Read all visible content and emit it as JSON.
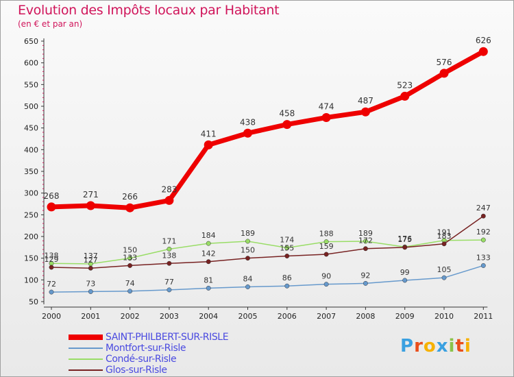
{
  "header": {
    "title": "Evolution des Impôts locaux par Habitant",
    "subtitle": "(en € et par an)"
  },
  "logo": {
    "text": "Proxiti",
    "letters": [
      "P",
      "r",
      "o",
      "x",
      "i",
      "t",
      "i"
    ],
    "colors": [
      "#3aa0e0",
      "#e94e1b",
      "#f6b100",
      "#3aa0e0",
      "#8bc34a",
      "#e94e1b",
      "#f6b100"
    ]
  },
  "chart_data": {
    "type": "line",
    "title": "Evolution des Impôts locaux par Habitant",
    "subtitle": "(en € et par an)",
    "x": [
      2000,
      2001,
      2002,
      2003,
      2004,
      2005,
      2006,
      2007,
      2008,
      2009,
      2010,
      2011
    ],
    "ylim": [
      50,
      650
    ],
    "yticks": [
      50,
      100,
      150,
      200,
      250,
      300,
      350,
      400,
      450,
      500,
      550,
      600,
      650
    ],
    "grid": false,
    "legend_position": "bottom-left",
    "series": [
      {
        "name": "SAINT-PHILBERT-SUR-RISLE",
        "color": "#ee0000",
        "values": [
          268,
          271,
          266,
          283,
          411,
          438,
          458,
          474,
          487,
          523,
          576,
          626
        ],
        "emphasis": true
      },
      {
        "name": "Montfort-sur-Risle",
        "color": "#6699cc",
        "values": [
          72,
          73,
          74,
          77,
          81,
          84,
          86,
          90,
          92,
          99,
          105,
          133
        ]
      },
      {
        "name": "Condé-sur-Risle",
        "color": "#99dd66",
        "values": [
          138,
          137,
          150,
          171,
          184,
          189,
          174,
          188,
          189,
          176,
          191,
          192
        ]
      },
      {
        "name": "Glos-sur-Risle",
        "color": "#772222",
        "values": [
          129,
          127,
          133,
          138,
          142,
          150,
          155,
          159,
          172,
          175,
          183,
          247
        ]
      }
    ]
  }
}
